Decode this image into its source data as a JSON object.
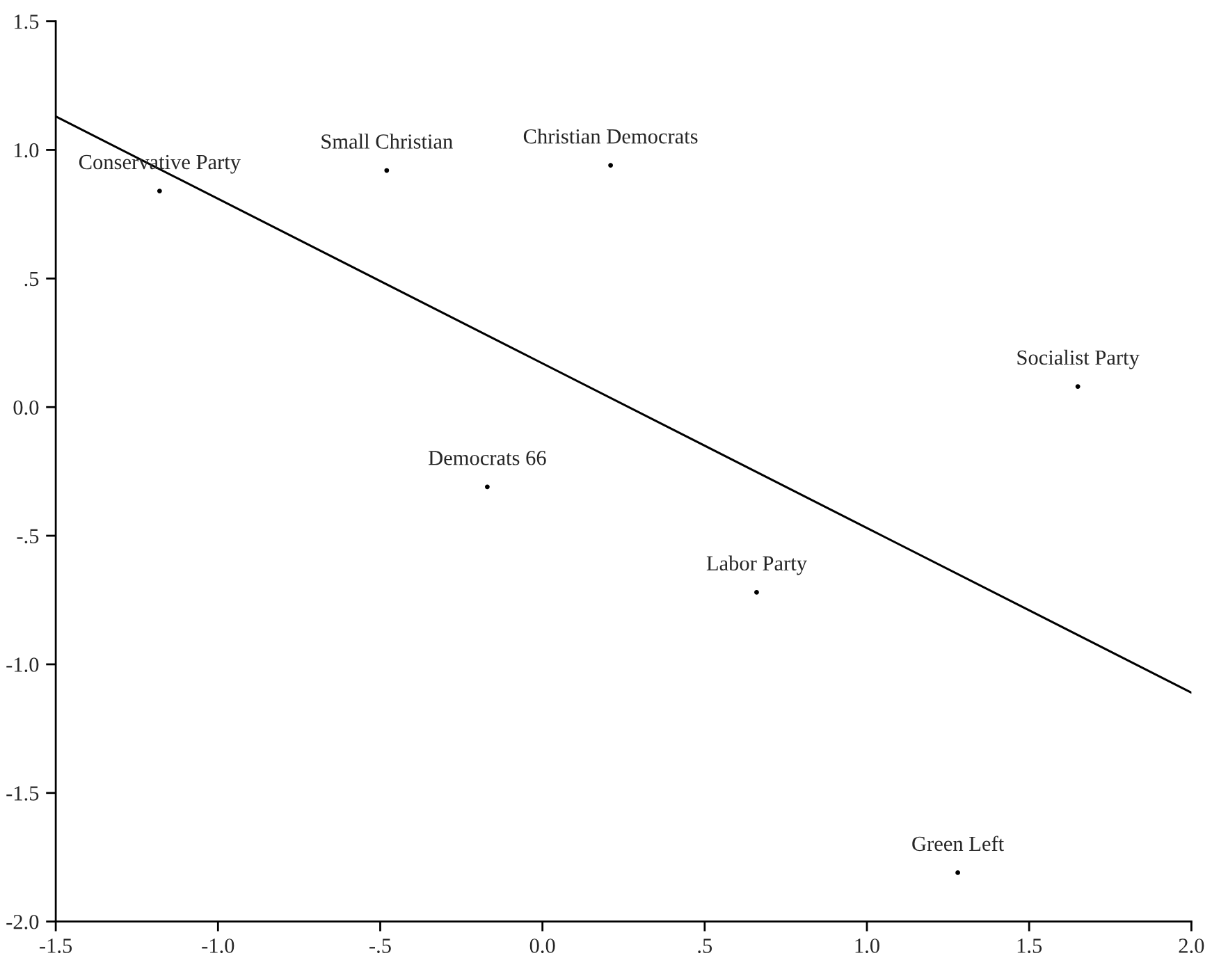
{
  "chart_data": {
    "type": "scatter",
    "series": [
      {
        "color": "#000000",
        "marker": "circle",
        "x": [
          -1.18,
          -0.48,
          0.21,
          1.65,
          -0.17,
          0.66,
          1.28
        ],
        "values": [
          0.84,
          0.92,
          0.94,
          0.08,
          -0.31,
          -0.72,
          -1.81
        ]
      },
      {
        "type": "line",
        "color": "#000000",
        "x": [
          -1.5,
          2.0
        ],
        "values": [
          1.13,
          -1.11
        ]
      }
    ],
    "annotations": [
      {
        "text": "Conservative Party",
        "x": -1.18,
        "y": 0.84
      },
      {
        "text": "Small Christian",
        "x": -0.48,
        "y": 0.92
      },
      {
        "text": "Christian Democrats",
        "x": 0.21,
        "y": 0.94
      },
      {
        "text": "Socialist Party",
        "x": 1.65,
        "y": 0.08
      },
      {
        "text": "Democrats 66",
        "x": -0.17,
        "y": -0.31
      },
      {
        "text": "Labor Party",
        "x": 0.66,
        "y": -0.72
      },
      {
        "text": "Green Left",
        "x": 1.28,
        "y": -1.81
      }
    ],
    "xlim": [
      -1.5,
      2.0
    ],
    "ylim": [
      -2.0,
      1.5
    ],
    "xticks": [
      -1.5,
      {
        "value": -1.0,
        "label": "-1.0"
      },
      {
        "value": -0.5,
        "label": "-.5"
      },
      {
        "value": 0,
        "label": "0.0"
      },
      {
        "value": 0.5,
        "label": ".5"
      },
      {
        "value": 1,
        "label": "1.0"
      },
      1.5,
      {
        "value": 2,
        "label": "2.0"
      }
    ],
    "yticks": [
      {
        "value": -2,
        "label": "-2.0"
      },
      -1.5,
      {
        "value": -1,
        "label": "-1.0"
      },
      {
        "value": -0.5,
        "label": "-.5"
      },
      {
        "value": 0,
        "label": "0.0"
      },
      {
        "value": 0.5,
        "label": ".5"
      },
      {
        "value": 1,
        "label": "1.0"
      },
      1.5
    ],
    "grid": false,
    "line_style": "solid"
  }
}
